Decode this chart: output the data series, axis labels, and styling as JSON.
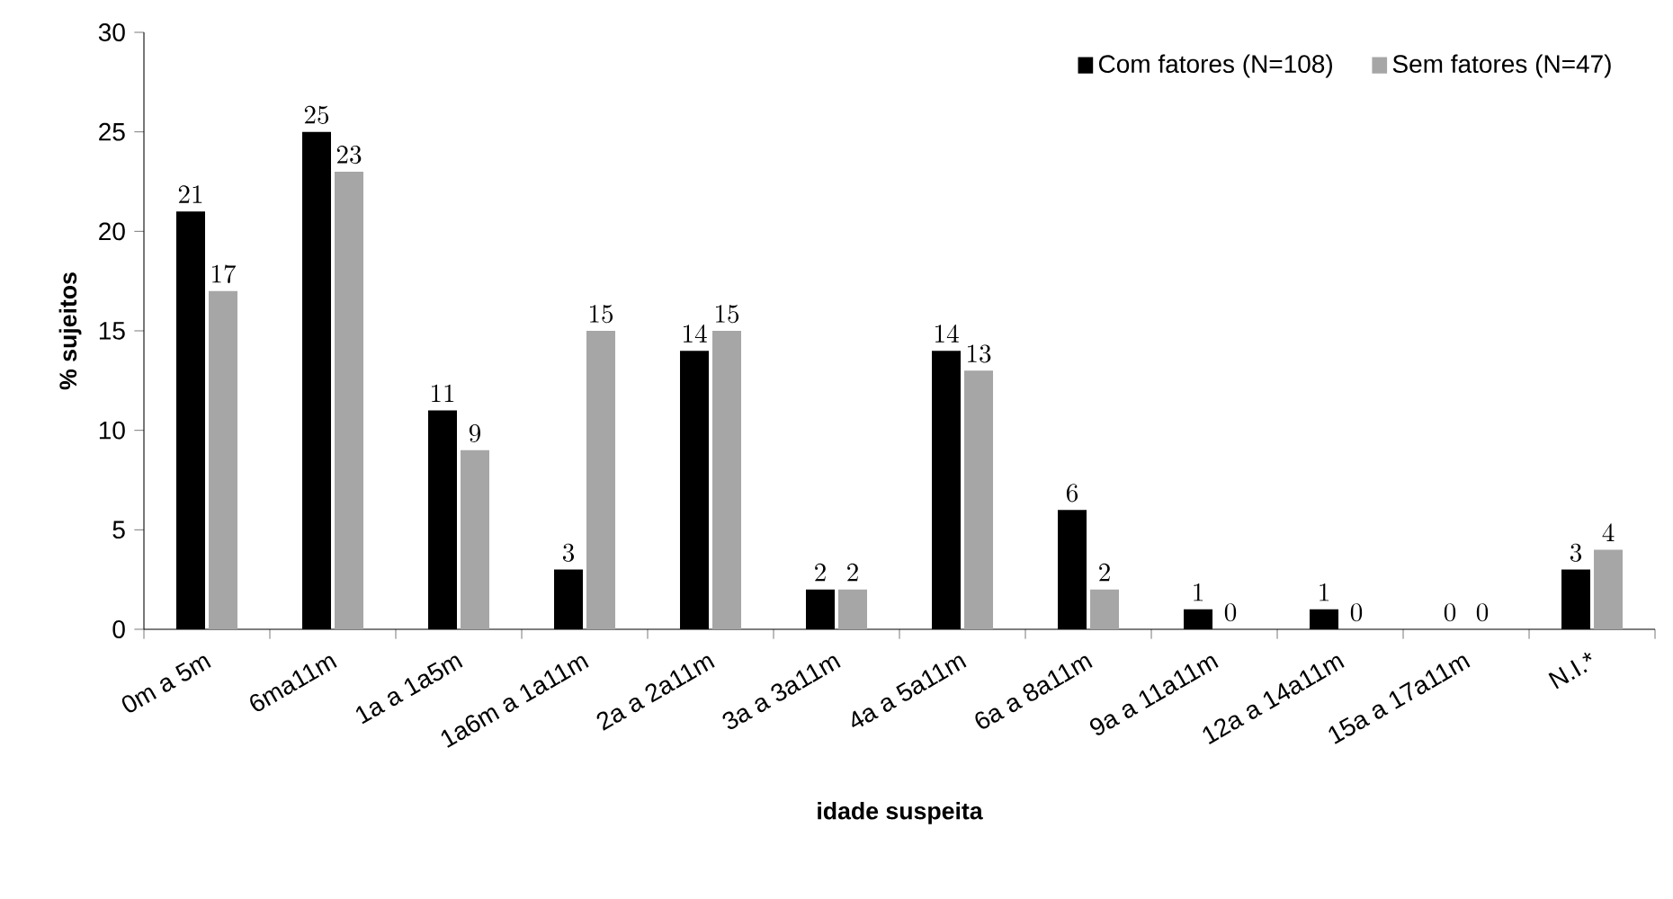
{
  "chart_data": {
    "type": "bar",
    "xlabel": "idade suspeita",
    "ylabel": "% sujeitos",
    "categories": [
      "0m a 5m",
      "6ma11m",
      "1a a 1a5m",
      "1a6m a 1a11m",
      "2a a 2a11m",
      "3a a 3a11m",
      "4a a 5a11m",
      "6a a 8a11m",
      "9a a 11a11m",
      "12a a 14a11m",
      "15a a 17a11m",
      "N.I.*"
    ],
    "series": [
      {
        "name": "Com fatores (N=108)",
        "color": "#000000",
        "values": [
          21,
          25,
          11,
          3,
          14,
          2,
          14,
          6,
          1,
          1,
          0,
          3
        ]
      },
      {
        "name": "Sem fatores (N=47)",
        "color": "#a6a6a6",
        "values": [
          17,
          23,
          9,
          15,
          15,
          2,
          13,
          2,
          0,
          0,
          0,
          4
        ]
      }
    ],
    "ylim": [
      0,
      30
    ],
    "yticks": [
      0,
      5,
      10,
      15,
      20,
      25,
      30
    ],
    "grid": false,
    "legend": "top right",
    "data_labels": true
  }
}
